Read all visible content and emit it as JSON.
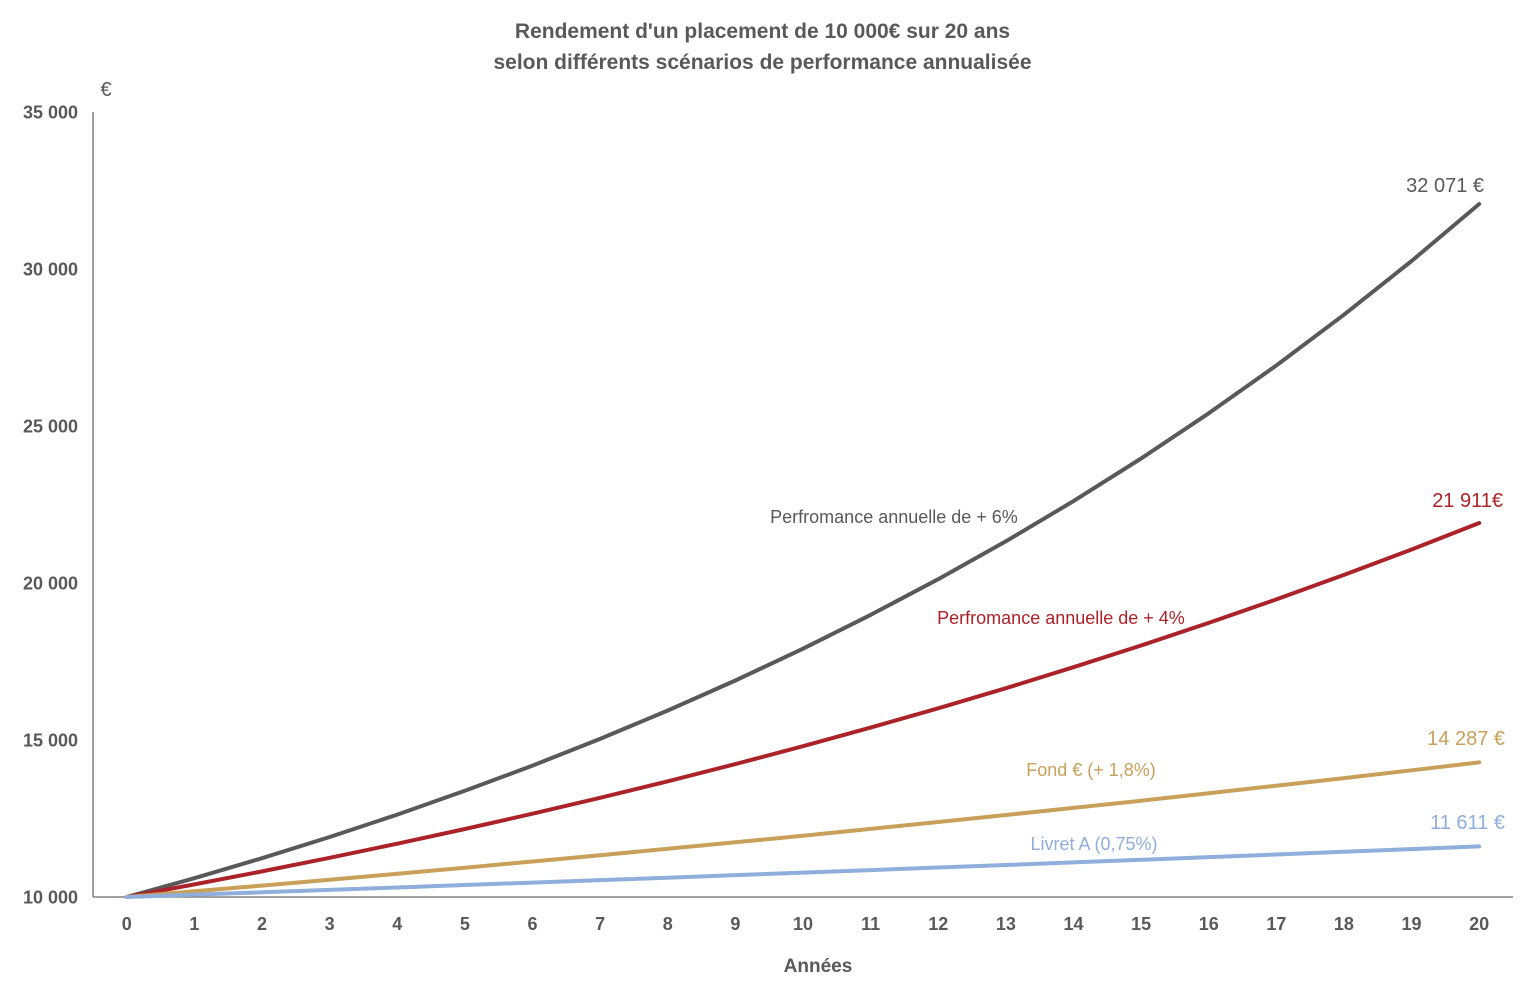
{
  "title": {
    "line1": "Rendement d'un placement de 10 000€ sur 20 ans",
    "line2": "selon différents scénarios de performance annualisée"
  },
  "chart_data": {
    "type": "line",
    "title": "Rendement d'un placement de 10 000€ sur 20 ans selon différents scénarios de performance annualisée",
    "xlabel": "Années",
    "ylabel": "€",
    "x": [
      0,
      1,
      2,
      3,
      4,
      5,
      6,
      7,
      8,
      9,
      10,
      11,
      12,
      13,
      14,
      15,
      16,
      17,
      18,
      19,
      20
    ],
    "xlim": [
      0,
      20
    ],
    "ylim": [
      10000,
      35000
    ],
    "ytick_values": [
      10000,
      15000,
      20000,
      25000,
      30000,
      35000
    ],
    "ytick_labels": [
      "10 000",
      "15 000",
      "20 000",
      "25 000",
      "30 000",
      "35 000"
    ],
    "grid": false,
    "legend_position": "inline-labels",
    "series": [
      {
        "name": "Perfromance annuelle de + 6%",
        "color": "#595959",
        "end_label": "32 071 €",
        "values": [
          10000,
          10600,
          11236,
          11910,
          12625,
          13382,
          14185,
          15036,
          15938,
          16895,
          17908,
          18983,
          20122,
          21329,
          22609,
          23966,
          25404,
          26928,
          28543,
          30256,
          32071
        ]
      },
      {
        "name": "Perfromance annuelle de + 4%",
        "color": "#AB2328",
        "end_label": "21 911€",
        "values": [
          10000,
          10400,
          10816,
          11249,
          11699,
          12167,
          12653,
          13159,
          13686,
          14233,
          14802,
          15395,
          16010,
          16651,
          17317,
          18009,
          18730,
          19479,
          20258,
          21068,
          21911
        ]
      },
      {
        "name": "Fond € (+ 1,8%)",
        "color": "#C9A05A",
        "end_label": "14 287 €",
        "values": [
          10000,
          10180,
          10363,
          10550,
          10740,
          10933,
          11130,
          11330,
          11534,
          11742,
          11953,
          12168,
          12387,
          12610,
          12837,
          13068,
          13303,
          13543,
          13787,
          14035,
          14287
        ]
      },
      {
        "name": "Livret A (0,75%)",
        "color": "#8FAEDC",
        "end_label": "11 611 €",
        "values": [
          10000,
          10075,
          10151,
          10227,
          10303,
          10381,
          10459,
          10537,
          10616,
          10696,
          10776,
          10857,
          10938,
          11020,
          11103,
          11186,
          11270,
          11354,
          11440,
          11525,
          11611
        ]
      }
    ]
  }
}
